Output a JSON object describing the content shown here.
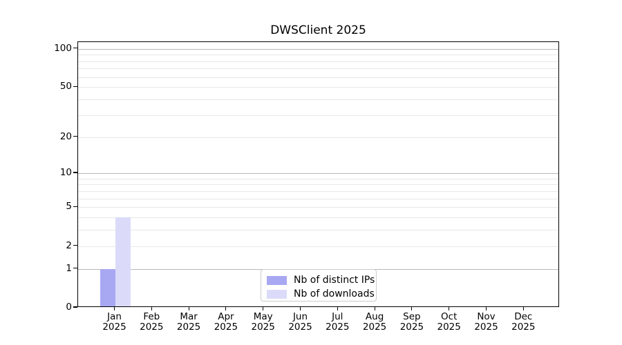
{
  "chart_data": {
    "type": "bar",
    "title": "DWSClient 2025",
    "categories": [
      "Jan",
      "Feb",
      "Mar",
      "Apr",
      "May",
      "Jun",
      "Jul",
      "Aug",
      "Sep",
      "Oct",
      "Nov",
      "Dec"
    ],
    "x_year_label": "2025",
    "series": [
      {
        "name": "Nb of distinct IPs",
        "color": "#a8a8f2",
        "values": [
          1,
          0,
          0,
          0,
          0,
          0,
          0,
          0,
          0,
          0,
          0,
          0
        ]
      },
      {
        "name": "Nb of downloads",
        "color": "#dbdbf9",
        "values": [
          4,
          0,
          0,
          0,
          0,
          0,
          0,
          0,
          0,
          0,
          0,
          0
        ]
      }
    ],
    "yscale": "log1p",
    "ylim": [
      0,
      113
    ],
    "yticks": [
      0,
      1,
      2,
      5,
      10,
      20,
      50,
      100
    ],
    "major_gridlines": [
      1,
      10,
      100
    ],
    "minor_gridlines": [
      2,
      3,
      4,
      5,
      6,
      7,
      8,
      9,
      20,
      30,
      40,
      50,
      60,
      70,
      80,
      90
    ],
    "grid": true,
    "legend_position": "lower-center-inside",
    "xlabel": "",
    "ylabel": ""
  },
  "colors": {
    "axis": "#000000",
    "major_grid": "#b8b8b8",
    "minor_grid": "#e7e7e7",
    "legend_border": "#cccccc",
    "background": "#ffffff"
  }
}
